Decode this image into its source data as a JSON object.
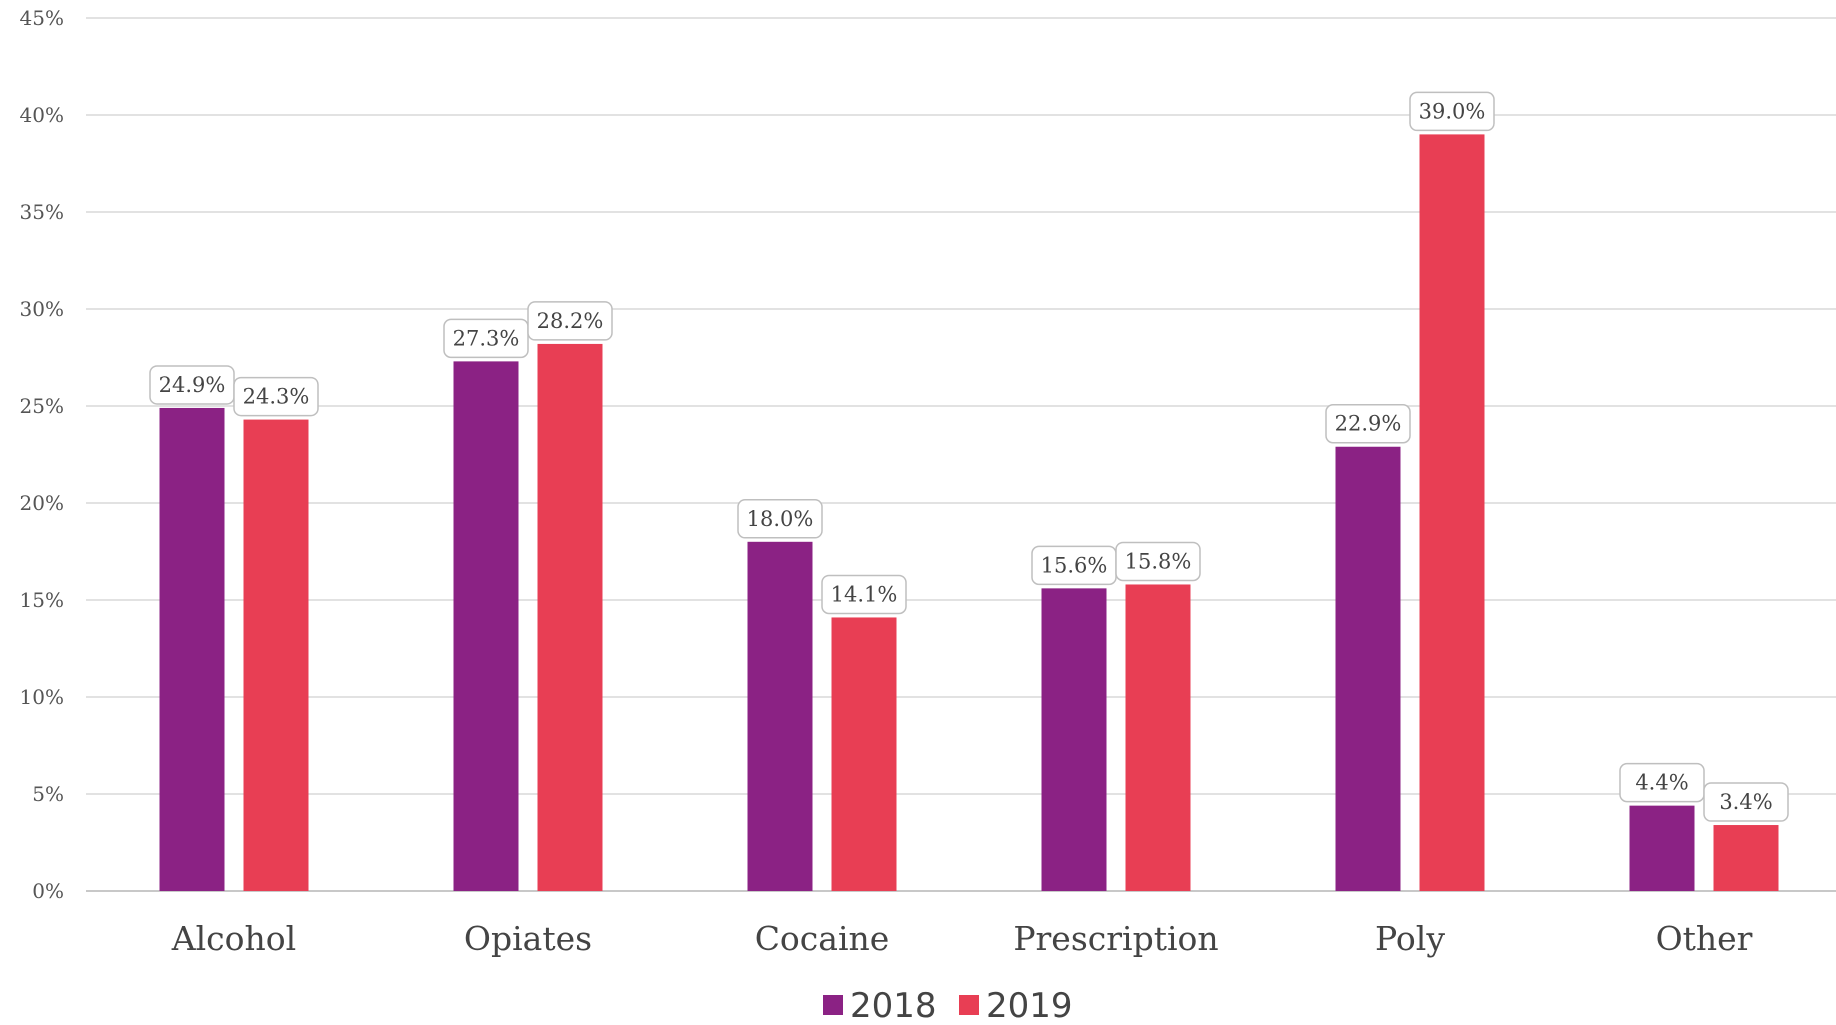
{
  "chart_data": {
    "type": "bar",
    "categories": [
      "Alcohol",
      "Opiates",
      "Cocaine",
      "Prescription",
      "Poly",
      "Other"
    ],
    "series": [
      {
        "name": "2018",
        "color": "#8b2284",
        "values": [
          24.9,
          27.3,
          18.0,
          15.6,
          22.9,
          4.4
        ],
        "labels": [
          "24.9%",
          "27.3%",
          "18.0%",
          "15.6%",
          "22.9%",
          "4.4%"
        ]
      },
      {
        "name": "2019",
        "color": "#e83e54",
        "values": [
          24.3,
          28.2,
          14.1,
          15.8,
          39.0,
          3.4
        ],
        "labels": [
          "24.3%",
          "28.2%",
          "14.1%",
          "15.8%",
          "39.0%",
          "3.4%"
        ]
      }
    ],
    "ylim": [
      0,
      45
    ],
    "yticks": [
      0,
      5,
      10,
      15,
      20,
      25,
      30,
      35,
      40,
      45
    ],
    "ytick_labels": [
      "0%",
      "5%",
      "10%",
      "15%",
      "20%",
      "25%",
      "30%",
      "35%",
      "40%",
      "45%"
    ],
    "grid": true,
    "legend_position": "bottom"
  }
}
